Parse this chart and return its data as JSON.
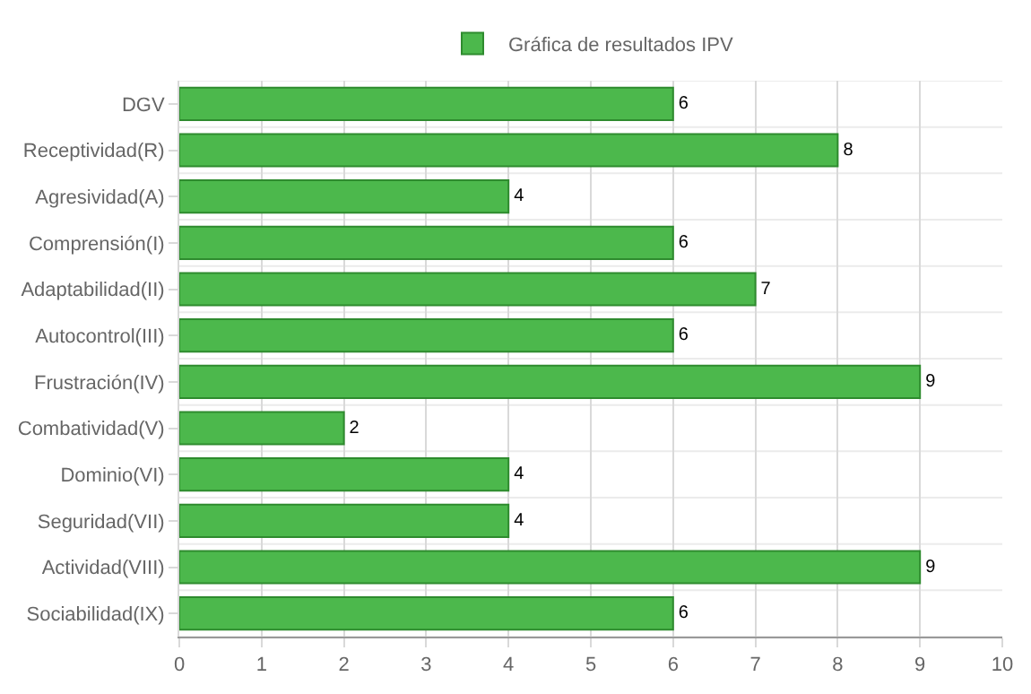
{
  "chart_data": {
    "type": "bar",
    "orientation": "horizontal",
    "categories": [
      "DGV",
      "Receptividad(R)",
      "Agresividad(A)",
      "Comprensión(I)",
      "Adaptabilidad(II)",
      "Autocontrol(III)",
      "Frustración(IV)",
      "Combatividad(V)",
      "Dominio(VI)",
      "Seguridad(VII)",
      "Actividad(VIII)",
      "Sociabilidad(IX)"
    ],
    "series": [
      {
        "name": "Gráfica de resultados IPV",
        "color": "#4cb84c",
        "values": [
          6,
          8,
          4,
          6,
          7,
          6,
          9,
          2,
          4,
          4,
          9,
          6
        ]
      }
    ],
    "xlim": [
      0,
      10
    ],
    "xticks": [
      0,
      1,
      2,
      3,
      4,
      5,
      6,
      7,
      8,
      9,
      10
    ],
    "grid": true,
    "legend": "top",
    "data_labels": true
  }
}
